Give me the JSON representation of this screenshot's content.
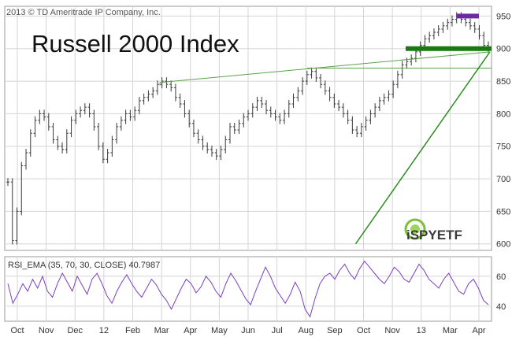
{
  "copyright": "2013 © TD Ameritrade IP Company, Inc.",
  "chart_data": [
    {
      "type": "line",
      "title": "Russell 2000 Index",
      "ylim": [
        590,
        965
      ],
      "y_ticks": [
        950,
        900,
        850,
        800,
        750,
        700,
        650,
        600
      ],
      "x_ticks": [
        "Oct",
        "Nov",
        "Dec",
        "12",
        "Feb",
        "Mar",
        "Apr",
        "May",
        "Jun",
        "Jul",
        "Aug",
        "Sep",
        "Oct",
        "Nov",
        "13",
        "Mar",
        "Apr"
      ],
      "grid": true,
      "series": [
        {
          "values": [
            695,
            605,
            650,
            720,
            740,
            770,
            790,
            800,
            795,
            780,
            760,
            750,
            745,
            770,
            790,
            800,
            805,
            810,
            800,
            780,
            750,
            730,
            740,
            760,
            780,
            790,
            800,
            795,
            805,
            820,
            825,
            830,
            835,
            845,
            850,
            845,
            840,
            825,
            815,
            800,
            785,
            770,
            760,
            750,
            745,
            740,
            735,
            745,
            760,
            780,
            775,
            785,
            795,
            800,
            810,
            820,
            815,
            805,
            800,
            795,
            790,
            800,
            815,
            825,
            835,
            850,
            860,
            865,
            855,
            845,
            835,
            825,
            815,
            810,
            800,
            790,
            775,
            770,
            780,
            790,
            800,
            810,
            820,
            825,
            830,
            845,
            860,
            875,
            880,
            885,
            895,
            905,
            915,
            920,
            925,
            930,
            935,
            940,
            945,
            950,
            945,
            940,
            935,
            930,
            920,
            905,
            900
          ]
        }
      ],
      "horizontal_lines": [
        {
          "y": 900,
          "color": "#1a7a12",
          "style": "thick support bar"
        },
        {
          "y": 870,
          "color": "#5aa34a",
          "style": "thin line"
        }
      ],
      "trendlines": [
        {
          "from": [
            "Oct",
            600
          ],
          "to": [
            "Apr",
            895
          ],
          "color": "#2e8b22"
        },
        {
          "from": [
            "Apr",
            848
          ],
          "to": [
            "Apr",
            895
          ],
          "color": "#5aa34a"
        }
      ],
      "highlight_bar": {
        "y": 950,
        "range": [
          "Mar",
          "Apr"
        ],
        "color": "#6a2ba0"
      }
    },
    {
      "type": "line",
      "label": "RSI_EMA (35, 70, 30, CLOSE)",
      "value_label": "40.7987",
      "ylim": [
        30,
        73
      ],
      "y_ticks": [
        60,
        40
      ],
      "grid": true,
      "series": [
        {
          "color": "#7a3fc1",
          "values": [
            55,
            42,
            48,
            55,
            50,
            58,
            52,
            60,
            50,
            46,
            55,
            62,
            56,
            50,
            60,
            54,
            48,
            58,
            62,
            55,
            47,
            42,
            50,
            56,
            61,
            55,
            50,
            46,
            52,
            58,
            54,
            48,
            44,
            38,
            45,
            52,
            58,
            55,
            49,
            53,
            60,
            56,
            50,
            46,
            55,
            62,
            57,
            51,
            45,
            41,
            50,
            58,
            66,
            60,
            52,
            47,
            42,
            48,
            56,
            50,
            38,
            33,
            45,
            55,
            60,
            62,
            58,
            64,
            68,
            62,
            58,
            65,
            70,
            66,
            62,
            58,
            55,
            60,
            66,
            63,
            58,
            56,
            62,
            68,
            64,
            58,
            55,
            52,
            58,
            62,
            56,
            50,
            48,
            55,
            58,
            52,
            44,
            41
          ]
        }
      ]
    }
  ],
  "logo": {
    "text": "iSPYETF"
  },
  "colors": {
    "price_bars": "#3a3a3a",
    "grid": "#d5d5d5",
    "trend_green": "#2e8b22",
    "support_green": "#1a7a12",
    "rsi_purple": "#7a3fc1",
    "highlight_purple": "#6a2ba0"
  }
}
